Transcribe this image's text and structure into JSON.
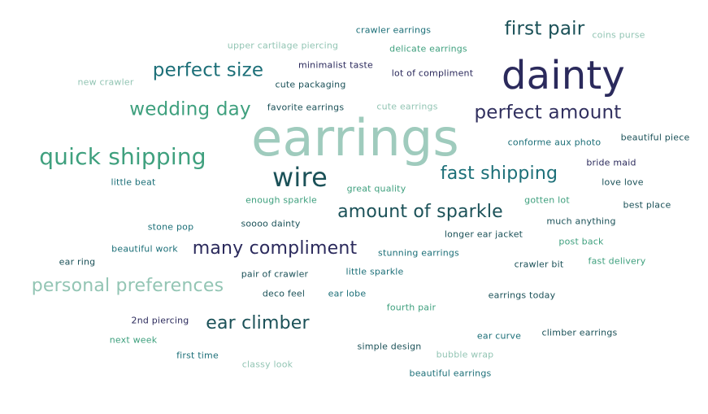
{
  "words": [
    {
      "text": "earrings",
      "color": "#9fcbbd"
    },
    {
      "text": "dainty",
      "color": "#2b2a5c"
    },
    {
      "text": "wire",
      "color": "#1b5158"
    },
    {
      "text": "quick shipping",
      "color": "#3fa07e"
    },
    {
      "text": "perfect amount",
      "color": "#31305f"
    },
    {
      "text": "perfect size",
      "color": "#1c6f78"
    },
    {
      "text": "wedding day",
      "color": "#3fa07e"
    },
    {
      "text": "first pair",
      "color": "#1b5158"
    },
    {
      "text": "fast shipping",
      "color": "#1c6f78"
    },
    {
      "text": "amount of sparkle",
      "color": "#1b5158"
    },
    {
      "text": "many compliment",
      "color": "#2b2a5c"
    },
    {
      "text": "personal preferences",
      "color": "#93c5b4"
    },
    {
      "text": "ear climber",
      "color": "#1b5158"
    },
    {
      "text": "crawler earrings",
      "color": "#1c6f78"
    },
    {
      "text": "upper cartilage piercing",
      "color": "#93c5b4"
    },
    {
      "text": "delicate earrings",
      "color": "#3fa07e"
    },
    {
      "text": "coins purse",
      "color": "#93c5b4"
    },
    {
      "text": "minimalist taste",
      "color": "#2b2a5c"
    },
    {
      "text": "lot of compliment",
      "color": "#2b2a5c"
    },
    {
      "text": "new crawler",
      "color": "#93c5b4"
    },
    {
      "text": "cute packaging",
      "color": "#1b5158"
    },
    {
      "text": "favorite earrings",
      "color": "#1b5158"
    },
    {
      "text": "cute earrings",
      "color": "#93c5b4"
    },
    {
      "text": "beautiful piece",
      "color": "#1b5158"
    },
    {
      "text": "conforme aux photo",
      "color": "#1c6f78"
    },
    {
      "text": "bride maid",
      "color": "#2b2a5c"
    },
    {
      "text": "love love",
      "color": "#1b5158"
    },
    {
      "text": "little beat",
      "color": "#1c6f78"
    },
    {
      "text": "great quality",
      "color": "#3fa07e"
    },
    {
      "text": "enough sparkle",
      "color": "#3fa07e"
    },
    {
      "text": "gotten lot",
      "color": "#3fa07e"
    },
    {
      "text": "best place",
      "color": "#1b5158"
    },
    {
      "text": "stone pop",
      "color": "#1c6f78"
    },
    {
      "text": "soooo dainty",
      "color": "#1b5158"
    },
    {
      "text": "much anything",
      "color": "#1b5158"
    },
    {
      "text": "longer ear jacket",
      "color": "#1b5158"
    },
    {
      "text": "post back",
      "color": "#3fa07e"
    },
    {
      "text": "beautiful work",
      "color": "#1c6f78"
    },
    {
      "text": "stunning earrings",
      "color": "#1c6f78"
    },
    {
      "text": "ear ring",
      "color": "#1b5158"
    },
    {
      "text": "crawler bit",
      "color": "#1b5158"
    },
    {
      "text": "fast delivery",
      "color": "#3fa07e"
    },
    {
      "text": "pair of crawler",
      "color": "#1b5158"
    },
    {
      "text": "little sparkle",
      "color": "#1c6f78"
    },
    {
      "text": "deco feel",
      "color": "#1b5158"
    },
    {
      "text": "ear lobe",
      "color": "#1c6f78"
    },
    {
      "text": "earrings today",
      "color": "#1b5158"
    },
    {
      "text": "fourth pair",
      "color": "#3fa07e"
    },
    {
      "text": "2nd piercing",
      "color": "#2b2a5c"
    },
    {
      "text": "next week",
      "color": "#3fa07e"
    },
    {
      "text": "ear curve",
      "color": "#1c6f78"
    },
    {
      "text": "climber earrings",
      "color": "#1b5158"
    },
    {
      "text": "first time",
      "color": "#1c6f78"
    },
    {
      "text": "simple design",
      "color": "#1b5158"
    },
    {
      "text": "bubble wrap",
      "color": "#93c5b4"
    },
    {
      "text": "classy look",
      "color": "#93c5b4"
    },
    {
      "text": "beautiful earrings",
      "color": "#1c6f78"
    }
  ]
}
